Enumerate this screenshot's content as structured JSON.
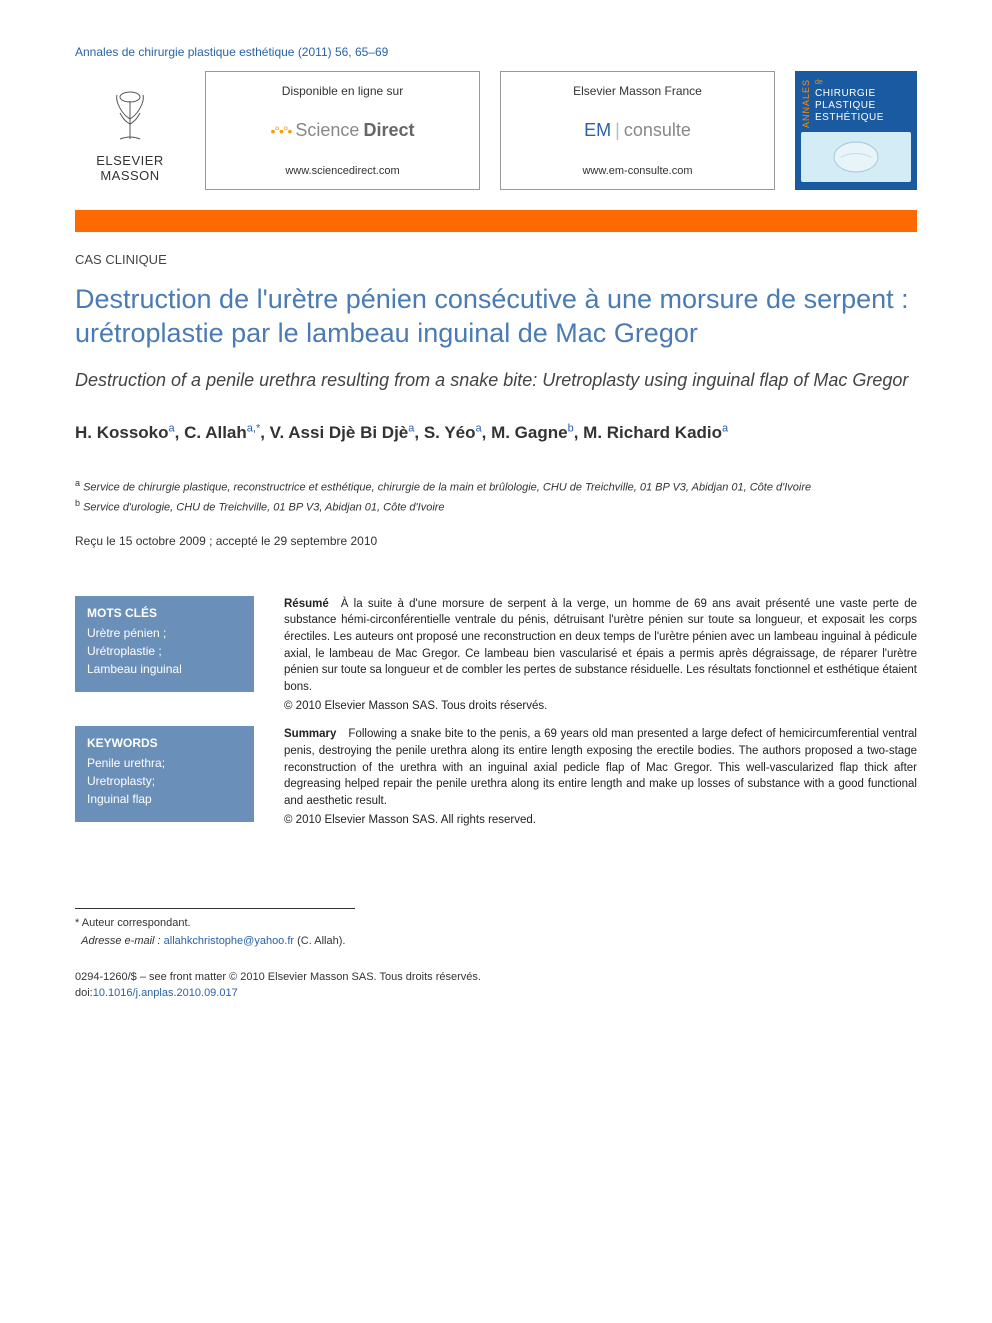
{
  "journal_ref": "Annales de chirurgie plastique esthétique (2011) 56, 65–69",
  "publisher_logo": {
    "line1": "ELSEVIER",
    "line2": "MASSON"
  },
  "banner_left": {
    "line1": "Disponible en ligne sur",
    "brand_light": "Science",
    "brand_bold": "Direct",
    "url": "www.sciencedirect.com"
  },
  "banner_right": {
    "line1": "Elsevier Masson France",
    "brand_em": "EM",
    "brand_consulte": "consulte",
    "url": "www.em-consulte.com"
  },
  "cover": {
    "annales": "ANNALES",
    "de": "de",
    "t1": "CHIRURGIE",
    "t2": "PLASTIQUE",
    "t3": "ESTHÉTIQUE"
  },
  "article_type": "CAS CLINIQUE",
  "title": "Destruction de l'urètre pénien consécutive à une morsure de serpent : urétroplastie par le lambeau inguinal de Mac Gregor",
  "subtitle": "Destruction of a penile urethra resulting from a snake bite: Uretroplasty using inguinal flap of Mac Gregor",
  "authors_html": "H. Kossoko<sup><a>a</a></sup>, C. Allah<sup><a>a</a>,<a>*</a></sup>, V. Assi Djè Bi Djè<sup><a>a</a></sup>, S. Yéo<sup><a>a</a></sup>, M. Gagne<sup><a>b</a></sup>, M. Richard Kadio<sup><a>a</a></sup>",
  "affiliations": {
    "a": "Service de chirurgie plastique, reconstructrice et esthétique, chirurgie de la main et brûlologie, CHU de Treichville, 01 BP V3, Abidjan 01, Côte d'Ivoire",
    "b": "Service d'urologie, CHU de Treichville, 01 BP V3, Abidjan 01, Côte d'Ivoire"
  },
  "dates": "Reçu le 15 octobre 2009 ; accepté le 29 septembre 2010",
  "mots_cles": {
    "head": "MOTS CLÉS",
    "items": "Urètre pénien ;\nUrétroplastie ;\nLambeau inguinal"
  },
  "resume": {
    "head": "Résumé",
    "body": "À la suite à d'une morsure de serpent à la verge, un homme de 69 ans avait présenté une vaste perte de substance hémi-circonférentielle ventrale du pénis, détruisant l'urètre pénien sur toute sa longueur, et exposait les corps érectiles. Les auteurs ont proposé une reconstruction en deux temps de l'urètre pénien avec un lambeau inguinal à pédicule axial, le lambeau de Mac Gregor. Ce lambeau bien vascularisé et épais a permis après dégraissage, de réparer l'urètre pénien sur toute sa longueur et de combler les pertes de substance résiduelle. Les résultats fonctionnel et esthétique étaient bons.",
    "copyright": "© 2010 Elsevier Masson SAS. Tous droits réservés."
  },
  "keywords": {
    "head": "KEYWORDS",
    "items": "Penile urethra;\nUretroplasty;\nInguinal flap"
  },
  "summary": {
    "head": "Summary",
    "body": "Following a snake bite to the penis, a 69 years old man presented a large defect of hemicircumferential ventral penis, destroying the penile urethra along its entire length exposing the erectile bodies. The authors proposed a two-stage reconstruction of the urethra with an inguinal axial pedicle flap of Mac Gregor. This well-vascularized flap thick after degreasing helped repair the penile urethra along its entire length and make up losses of substance with a good functional and aesthetic result.",
    "copyright": "© 2010 Elsevier Masson SAS. All rights reserved."
  },
  "footnote": {
    "corr": "Auteur correspondant.",
    "email_label": "Adresse e-mail :",
    "email": "allahkchristophe@yahoo.fr",
    "email_who": "(C. Allah)."
  },
  "bottom": {
    "front": "0294-1260/$ – see front matter © 2010 Elsevier Masson SAS. Tous droits réservés.",
    "doi_label": "doi:",
    "doi": "10.1016/j.anplas.2010.09.017"
  },
  "colors": {
    "link": "#2962a8",
    "title": "#4a7bb5",
    "orange_bar": "#ff6a00",
    "kw_box": "#6a8fb8",
    "cover_bg": "#1a5aa0"
  }
}
